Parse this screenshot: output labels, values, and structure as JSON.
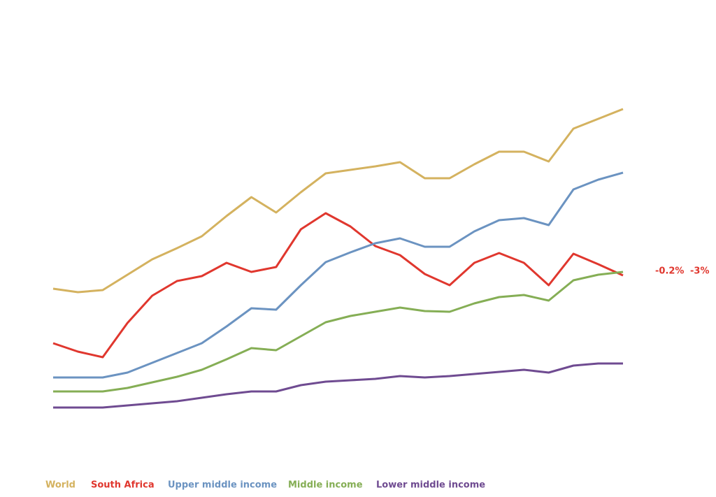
{
  "chart_data": {
    "type": "line",
    "categories": [
      null,
      null,
      null,
      null,
      null,
      null,
      null,
      null,
      null,
      null,
      null,
      null,
      null,
      null,
      null,
      null,
      null,
      null,
      null,
      null,
      null,
      null,
      null,
      null
    ],
    "ylim": [
      0,
      540
    ],
    "series": [
      {
        "name": "World",
        "color": "#d4b25f",
        "values": [
          227,
          222,
          225,
          247,
          269,
          285,
          302,
          331,
          358,
          336,
          365,
          392,
          397,
          402,
          408,
          385,
          385,
          405,
          423,
          423,
          409,
          456,
          470,
          484
        ]
      },
      {
        "name": "South Africa",
        "color": "#e0372e",
        "values": [
          149,
          137,
          129,
          178,
          217,
          238,
          245,
          264,
          251,
          258,
          312,
          335,
          316,
          288,
          275,
          248,
          232,
          264,
          278,
          264,
          232,
          277,
          262,
          246
        ]
      },
      {
        "name": "Upper middle income",
        "color": "#6b93c1",
        "values": [
          100,
          100,
          100,
          107,
          121,
          135,
          149,
          173,
          199,
          197,
          232,
          265,
          279,
          292,
          299,
          287,
          287,
          309,
          325,
          328,
          318,
          369,
          383,
          393
        ]
      },
      {
        "name": "Middle income",
        "color": "#85ae55",
        "values": [
          80,
          80,
          80,
          85,
          93,
          101,
          111,
          126,
          142,
          139,
          159,
          179,
          188,
          194,
          200,
          195,
          194,
          206,
          215,
          218,
          210,
          239,
          247,
          251
        ]
      },
      {
        "name": "Lower middle income",
        "color": "#6f4b91",
        "values": [
          57,
          57,
          57,
          60,
          63,
          66,
          71,
          76,
          80,
          80,
          89,
          94,
          96,
          98,
          102,
          100,
          102,
          105,
          108,
          111,
          107,
          117,
          120,
          120
        ]
      }
    ],
    "annotations": [
      "-0.2%",
      "-3%"
    ]
  }
}
